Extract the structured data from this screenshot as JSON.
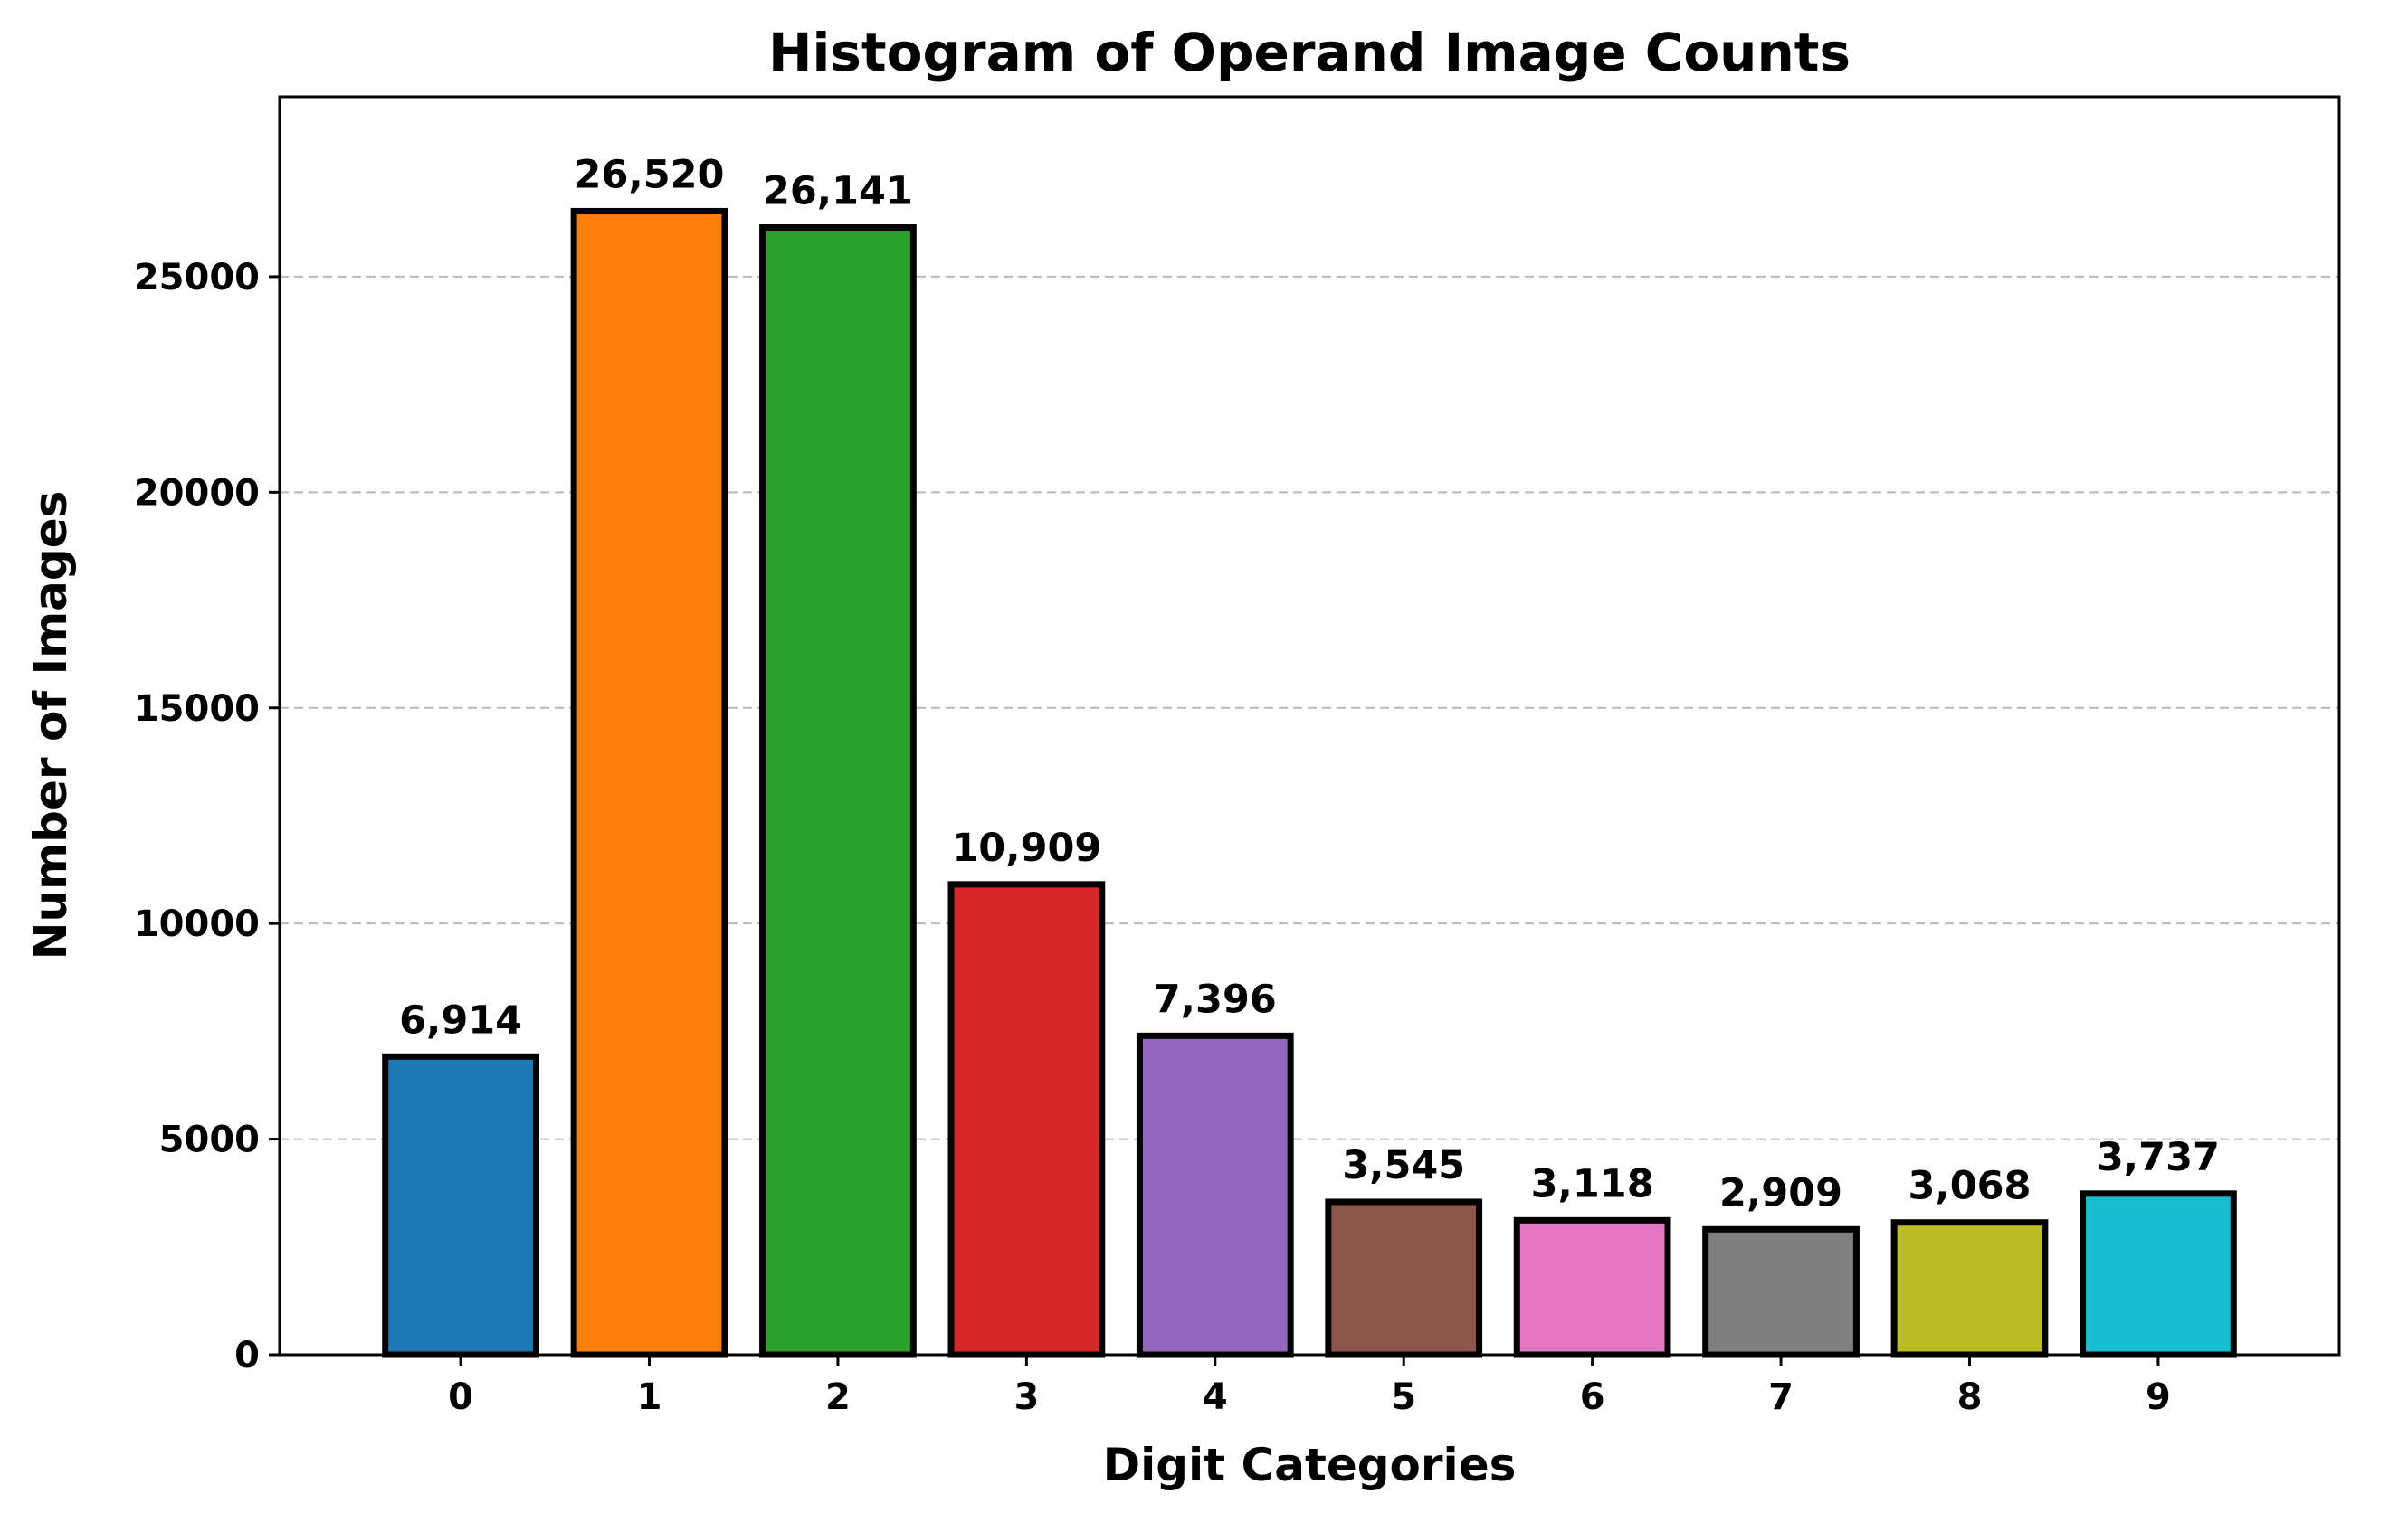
{
  "chart_data": {
    "type": "bar",
    "title": "Histogram of Operand Image Counts",
    "xlabel": "Digit Categories",
    "ylabel": "Number of Images",
    "categories": [
      "0",
      "1",
      "2",
      "3",
      "4",
      "5",
      "6",
      "7",
      "8",
      "9"
    ],
    "values": [
      6914,
      26520,
      26141,
      10909,
      7396,
      3545,
      3118,
      2909,
      3068,
      3737
    ],
    "value_labels": [
      "6,914",
      "26,520",
      "26,141",
      "10,909",
      "7,396",
      "3,545",
      "3,118",
      "2,909",
      "3,068",
      "3,737"
    ],
    "colors": [
      "#1f77b4",
      "#ff7f0e",
      "#2ca02c",
      "#d62728",
      "#9467bd",
      "#8c564b",
      "#e377c2",
      "#7f7f7f",
      "#bcbd22",
      "#17becf"
    ],
    "yticks": [
      0,
      5000,
      10000,
      15000,
      20000,
      25000
    ],
    "ytick_labels": [
      "0",
      "5000",
      "10000",
      "15000",
      "20000",
      "25000"
    ],
    "ylim": [
      0,
      29172
    ],
    "xlim": [
      -0.96,
      9.96
    ],
    "grid": "y-dashed",
    "legend": "none"
  }
}
